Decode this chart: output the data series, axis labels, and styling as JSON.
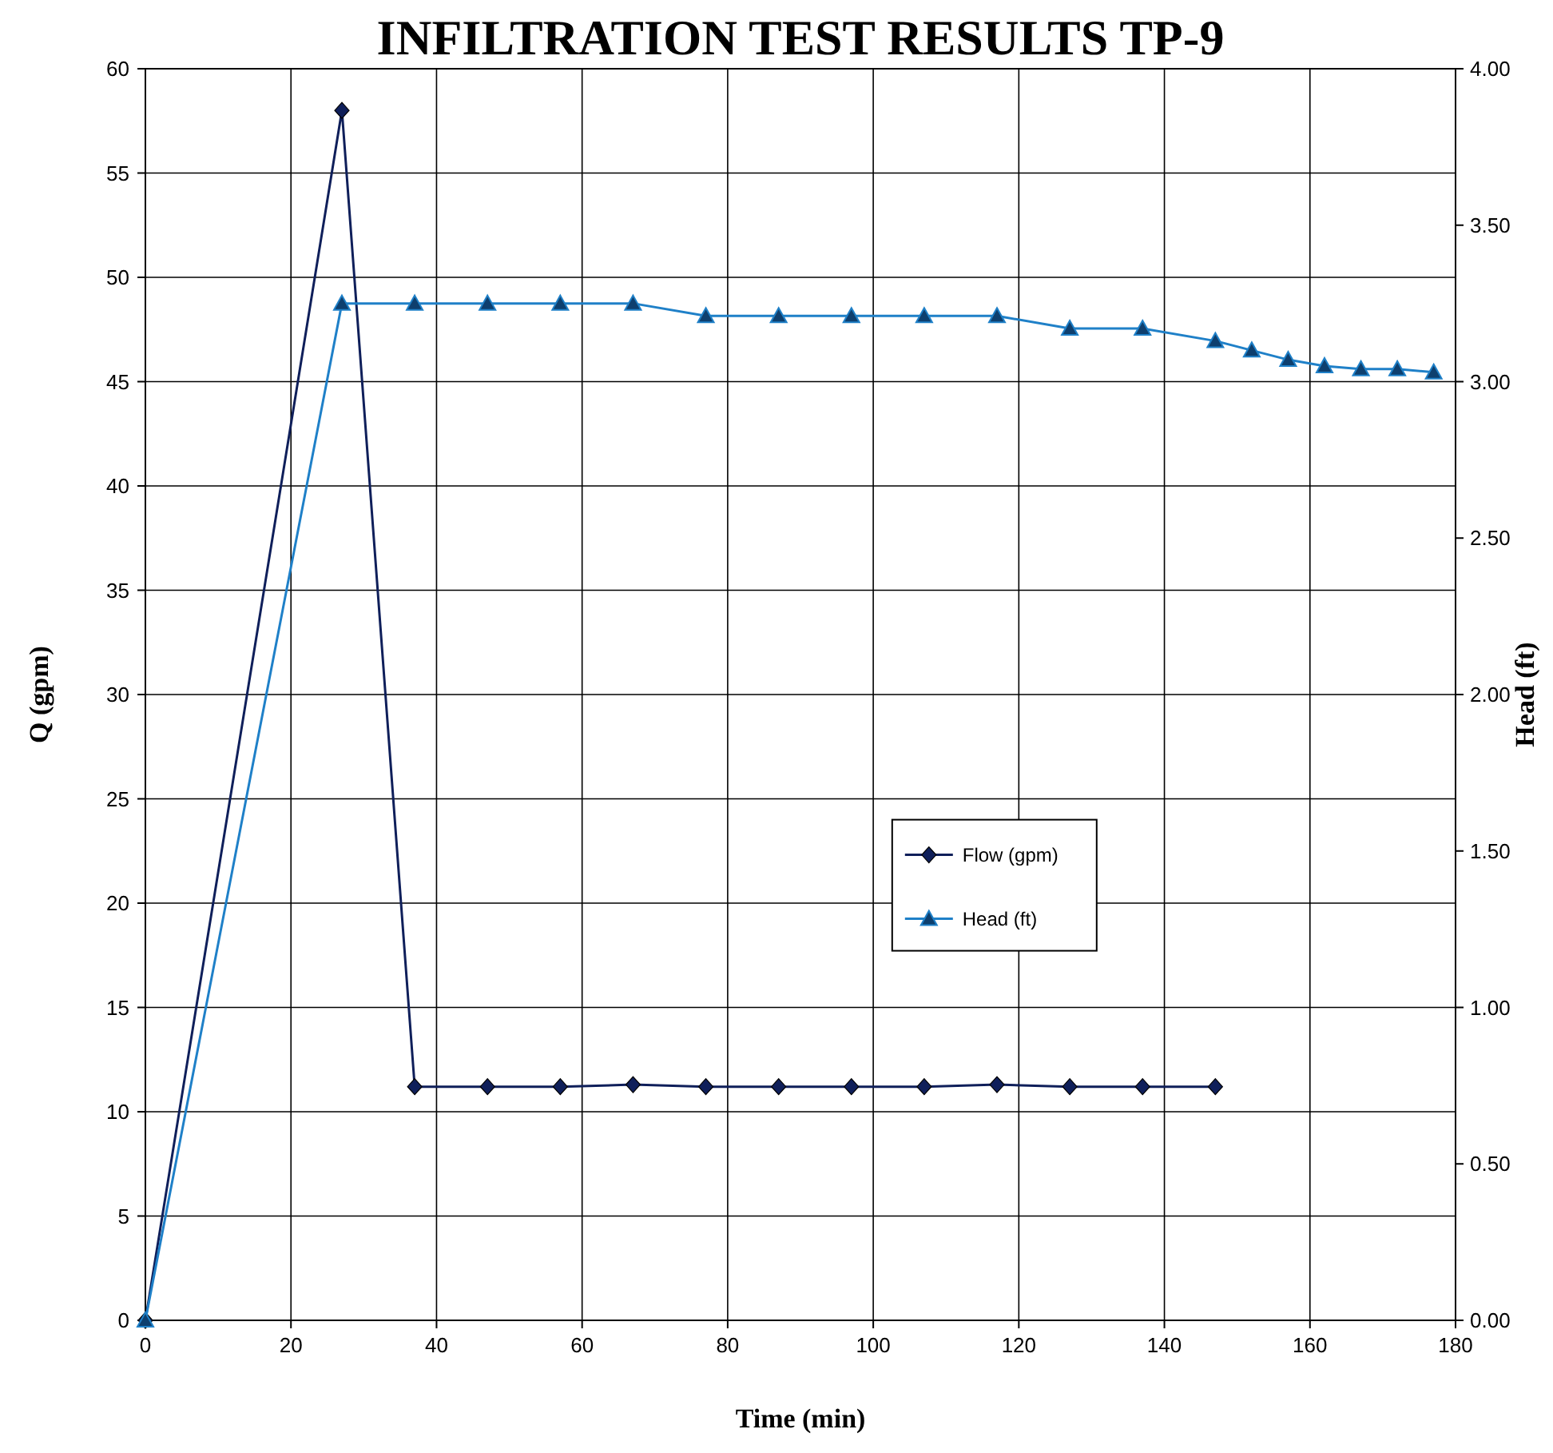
{
  "chart_data": {
    "type": "line",
    "title": "INFILTRATION TEST RESULTS TP-9",
    "xlabel": "Time (min)",
    "ylabel": "Q (gpm)",
    "y2label": "Head (ft)",
    "xlim": [
      0,
      180
    ],
    "xticks": [
      0,
      20,
      40,
      60,
      80,
      100,
      120,
      140,
      160,
      180
    ],
    "ylim": [
      0,
      60
    ],
    "yticks": [
      0,
      5,
      10,
      15,
      20,
      25,
      30,
      35,
      40,
      45,
      50,
      55,
      60
    ],
    "y2lim": [
      0,
      4
    ],
    "y2ticks": [
      {
        "value": 0,
        "label": "0.00"
      },
      {
        "value": 0.5,
        "label": "0.50"
      },
      {
        "value": 1,
        "label": "1.00"
      },
      {
        "value": 1.5,
        "label": "1.50"
      },
      {
        "value": 2,
        "label": "2.00"
      },
      {
        "value": 2.5,
        "label": "2.50"
      },
      {
        "value": 3,
        "label": "3.00"
      },
      {
        "value": 3.5,
        "label": "3.50"
      },
      {
        "value": 4,
        "label": "4.00"
      }
    ],
    "grid": true,
    "legend": "right",
    "line_style": "solid",
    "series": [
      {
        "name": "Flow (gpm)",
        "color": "#0f1f5a",
        "marker": "diamond",
        "x": [
          0,
          27,
          37,
          47,
          57,
          67,
          77,
          87,
          97,
          107,
          117,
          127,
          137,
          147
        ],
        "values": [
          0,
          58,
          11.2,
          11.2,
          11.2,
          11.3,
          11.2,
          11.2,
          11.2,
          11.2,
          11.3,
          11.2,
          11.2,
          11.2
        ]
      },
      {
        "name": "Head (ft)",
        "color": "#1f80c8",
        "marker": "triangle",
        "axis": "y2",
        "x": [
          0,
          27,
          37,
          47,
          57,
          67,
          77,
          87,
          97,
          107,
          117,
          127,
          137,
          147,
          152,
          157,
          162,
          167,
          172,
          177
        ],
        "values": [
          0,
          3.25,
          3.25,
          3.25,
          3.25,
          3.25,
          3.21,
          3.21,
          3.21,
          3.21,
          3.21,
          3.17,
          3.17,
          3.13,
          3.1,
          3.07,
          3.05,
          3.04,
          3.04,
          3.03
        ]
      }
    ]
  }
}
